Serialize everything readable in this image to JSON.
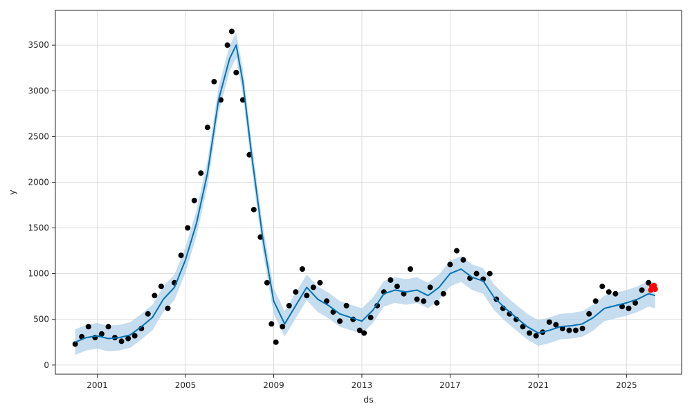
{
  "chart_data": {
    "type": "line",
    "title": "",
    "xlabel": "ds",
    "ylabel": "y",
    "x_ticks": [
      "2001",
      "2005",
      "2009",
      "2013",
      "2017",
      "2021",
      "2025"
    ],
    "y_ticks": [
      "0",
      "500",
      "1000",
      "1500",
      "2000",
      "2500",
      "3000",
      "3500"
    ],
    "xlim": [
      1999.1,
      2027.5
    ],
    "ylim": [
      -100,
      3880
    ],
    "grid": true,
    "colors": {
      "observed": "#000000",
      "forecast_line": "#0072b2",
      "uncertainty_band": "#a6cbe6",
      "future_observed": "#ff0000"
    },
    "series": [
      {
        "role": "observed",
        "marker": "point",
        "x": [
          2000.0,
          2000.3,
          2000.6,
          2000.9,
          2001.2,
          2001.5,
          2001.8,
          2002.1,
          2002.4,
          2002.7,
          2003.0,
          2003.3,
          2003.6,
          2003.9,
          2004.2,
          2004.5,
          2004.8,
          2005.1,
          2005.4,
          2005.7,
          2006.0,
          2006.3,
          2006.6,
          2006.9,
          2007.1,
          2007.3,
          2007.6,
          2007.9,
          2008.1,
          2008.4,
          2008.7,
          2008.9,
          2009.1,
          2009.4,
          2009.7,
          2010.0,
          2010.3,
          2010.5,
          2010.8,
          2011.1,
          2011.4,
          2011.7,
          2012.0,
          2012.3,
          2012.6,
          2012.9,
          2013.1,
          2013.4,
          2013.7,
          2014.0,
          2014.3,
          2014.6,
          2014.9,
          2015.2,
          2015.5,
          2015.8,
          2016.1,
          2016.4,
          2016.7,
          2017.0,
          2017.3,
          2017.6,
          2017.9,
          2018.2,
          2018.5,
          2018.8,
          2019.1,
          2019.4,
          2019.7,
          2020.0,
          2020.3,
          2020.6,
          2020.9,
          2021.2,
          2021.5,
          2021.8,
          2022.1,
          2022.4,
          2022.7,
          2023.0,
          2023.3,
          2023.6,
          2023.9,
          2024.2,
          2024.5,
          2024.8,
          2025.1,
          2025.4,
          2025.7,
          2026.0
        ],
        "y": [
          230,
          310,
          420,
          300,
          340,
          420,
          300,
          260,
          290,
          320,
          400,
          560,
          760,
          860,
          620,
          900,
          1200,
          1500,
          1800,
          2100,
          2600,
          3100,
          2900,
          3500,
          3650,
          3200,
          2900,
          2300,
          1700,
          1400,
          900,
          450,
          250,
          420,
          650,
          800,
          1050,
          760,
          850,
          900,
          700,
          580,
          480,
          650,
          500,
          380,
          350,
          520,
          650,
          800,
          930,
          860,
          780,
          1050,
          720,
          700,
          850,
          680,
          780,
          1100,
          1250,
          1150,
          950,
          1000,
          940,
          1000,
          720,
          620,
          560,
          500,
          420,
          350,
          320,
          360,
          470,
          440,
          400,
          380,
          380,
          400,
          560,
          700,
          860,
          800,
          780,
          640,
          620,
          680,
          820,
          900
        ]
      },
      {
        "role": "forecast",
        "marker": "line",
        "x": [
          2000.0,
          2000.5,
          2001.0,
          2001.5,
          2002.0,
          2002.5,
          2003.0,
          2003.5,
          2004.0,
          2004.5,
          2005.0,
          2005.5,
          2006.0,
          2006.5,
          2007.0,
          2007.3,
          2007.6,
          2008.0,
          2008.5,
          2009.0,
          2009.5,
          2010.0,
          2010.5,
          2011.0,
          2011.5,
          2012.0,
          2012.5,
          2013.0,
          2013.5,
          2014.0,
          2014.5,
          2015.0,
          2015.5,
          2016.0,
          2016.5,
          2017.0,
          2017.5,
          2018.0,
          2018.5,
          2019.0,
          2019.5,
          2020.0,
          2020.5,
          2021.0,
          2021.5,
          2022.0,
          2022.5,
          2023.0,
          2023.5,
          2024.0,
          2024.5,
          2025.0,
          2025.5,
          2026.0,
          2026.3
        ],
        "y": [
          250,
          300,
          320,
          290,
          300,
          330,
          420,
          520,
          720,
          850,
          1150,
          1550,
          2100,
          2900,
          3350,
          3500,
          3100,
          2300,
          1400,
          700,
          450,
          650,
          850,
          720,
          650,
          560,
          520,
          480,
          600,
          780,
          820,
          800,
          820,
          760,
          850,
          1000,
          1050,
          960,
          920,
          740,
          620,
          520,
          420,
          350,
          380,
          420,
          430,
          450,
          520,
          620,
          650,
          680,
          720,
          780,
          760
        ]
      },
      {
        "role": "uncertainty",
        "marker": "band",
        "x": [
          2000.0,
          2000.5,
          2001.0,
          2001.5,
          2002.0,
          2002.5,
          2003.0,
          2003.5,
          2004.0,
          2004.5,
          2005.0,
          2005.5,
          2006.0,
          2006.5,
          2007.0,
          2007.3,
          2007.6,
          2008.0,
          2008.5,
          2009.0,
          2009.5,
          2010.0,
          2010.5,
          2011.0,
          2011.5,
          2012.0,
          2012.5,
          2013.0,
          2013.5,
          2014.0,
          2014.5,
          2015.0,
          2015.5,
          2016.0,
          2016.5,
          2017.0,
          2017.5,
          2018.0,
          2018.5,
          2019.0,
          2019.5,
          2020.0,
          2020.5,
          2021.0,
          2021.5,
          2022.0,
          2022.5,
          2023.0,
          2023.5,
          2024.0,
          2024.5,
          2025.0,
          2025.5,
          2026.0,
          2026.3
        ],
        "lower": [
          110,
          160,
          180,
          150,
          160,
          190,
          280,
          380,
          580,
          710,
          1010,
          1410,
          1960,
          2760,
          3210,
          3360,
          2960,
          2160,
          1260,
          560,
          310,
          510,
          710,
          580,
          510,
          420,
          380,
          340,
          460,
          640,
          680,
          660,
          680,
          620,
          710,
          860,
          910,
          820,
          780,
          600,
          480,
          380,
          280,
          210,
          240,
          280,
          290,
          310,
          380,
          480,
          510,
          540,
          580,
          640,
          620
        ],
        "upper": [
          390,
          440,
          460,
          430,
          440,
          470,
          560,
          660,
          860,
          990,
          1290,
          1690,
          2240,
          3040,
          3490,
          3640,
          3240,
          2440,
          1540,
          840,
          590,
          790,
          990,
          860,
          790,
          700,
          660,
          620,
          740,
          920,
          960,
          940,
          960,
          900,
          990,
          1140,
          1190,
          1100,
          1060,
          880,
          760,
          660,
          560,
          490,
          520,
          560,
          570,
          590,
          660,
          760,
          790,
          820,
          860,
          920,
          900
        ]
      },
      {
        "role": "future_observed",
        "marker": "point",
        "x": [
          2026.1,
          2026.15,
          2026.2,
          2026.25,
          2026.3
        ],
        "y": [
          820,
          860,
          840,
          870,
          830
        ]
      }
    ]
  }
}
